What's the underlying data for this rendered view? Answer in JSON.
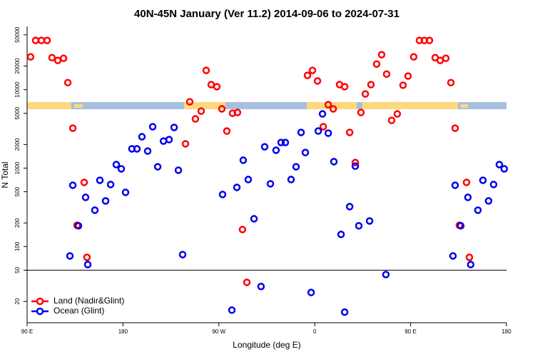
{
  "chart_data": {
    "type": "scatter",
    "title": "40N-45N January (Ver 11.2)   2014-09-06 to 2024-07-31",
    "x_label": "Longitude (deg E)",
    "y_label": "N Total",
    "xlim": [
      90,
      540
    ],
    "xticks": [
      {
        "value": 90,
        "label": "90 E"
      },
      {
        "value": 180,
        "label": "180"
      },
      {
        "value": 270,
        "label": "90 W"
      },
      {
        "value": 360,
        "label": "0"
      },
      {
        "value": 450,
        "label": "90 E"
      },
      {
        "value": 540,
        "label": "180"
      }
    ],
    "ylim": [
      10.7,
      64000
    ],
    "y_log": true,
    "yticks": [
      20,
      50,
      100,
      200,
      500,
      1000,
      2000,
      5000,
      10000,
      20000,
      50000
    ],
    "hline": 50,
    "legend": "bottom left",
    "series": [
      {
        "name": "Land (Nadir&Glint)",
        "color": "#ff0000",
        "x": [
          93.3,
          98.0,
          103.4,
          108.8,
          113.4,
          118.8,
          124.2,
          128.2,
          132.9,
          136.9,
          143.6,
          146.2,
          238.7,
          242.7,
          248.0,
          253.4,
          258.1,
          262.8,
          268.1,
          272.8,
          277.5,
          282.8,
          287.5,
          292.2,
          296.3,
          353.2,
          357.9,
          362.6,
          368.0,
          372.7,
          377.4,
          383.3,
          388.1,
          392.8,
          398.1,
          403.4,
          407.5,
          412.8,
          418.1,
          422.8,
          427.5,
          432.2,
          437.5,
          442.9,
          447.6,
          452.9,
          458.3,
          463.0,
          467.7,
          473.1,
          477.8,
          483.1,
          487.8,
          491.8,
          495.8,
          502.5,
          505.2
        ],
        "values": [
          26200,
          42400,
          42400,
          42400,
          25600,
          23600,
          25100,
          12300,
          3230,
          187,
          658,
          73,
          2040,
          7000,
          4240,
          5330,
          17600,
          11600,
          10900,
          5690,
          2970,
          5010,
          5120,
          165,
          35,
          15200,
          17600,
          12900,
          3370,
          6440,
          5690,
          11600,
          10900,
          2850,
          1180,
          5120,
          8810,
          11600,
          21200,
          27900,
          15800,
          4060,
          4910,
          11400,
          14900,
          26200,
          42400,
          42400,
          42400,
          25600,
          23600,
          25100,
          12300,
          3230,
          187,
          658,
          73
        ]
      },
      {
        "name": "Ocean (Glint)",
        "color": "#0000ee",
        "x": [
          130.2,
          132.9,
          138.2,
          144.9,
          146.9,
          153.6,
          158.3,
          163.7,
          168.4,
          173.7,
          178.4,
          182.4,
          188.4,
          193.1,
          197.8,
          203.2,
          207.9,
          212.6,
          218.0,
          223.3,
          228.0,
          232.0,
          236.0,
          273.5,
          282.2,
          286.9,
          292.9,
          297.6,
          303.0,
          309.6,
          313.0,
          318.4,
          323.7,
          328.4,
          332.4,
          337.8,
          342.5,
          347.2,
          351.2,
          356.6,
          363.3,
          367.3,
          372.7,
          378.0,
          384.7,
          388.1,
          392.8,
          398.1,
          401.4,
          411.5,
          426.8,
          489.8,
          491.8,
          497.1,
          503.8,
          506.4,
          513.2,
          517.9,
          523.2,
          527.9,
          533.3,
          537.9
        ],
        "values": [
          76,
          605,
          184,
          424,
          59,
          291,
          700,
          382,
          618,
          1110,
          979,
          491,
          1760,
          1760,
          2510,
          1650,
          3370,
          1040,
          2210,
          2310,
          3300,
          940,
          79,
          461,
          15.5,
          568,
          1260,
          716,
          226,
          31,
          1870,
          631,
          1690,
          2120,
          2120,
          716,
          1040,
          2850,
          1580,
          26,
          2970,
          4910,
          2790,
          1210,
          143,
          14.6,
          323,
          1060,
          184,
          212,
          44,
          76,
          605,
          184,
          424,
          59,
          291,
          700,
          382,
          618,
          1110,
          979
        ]
      }
    ]
  }
}
